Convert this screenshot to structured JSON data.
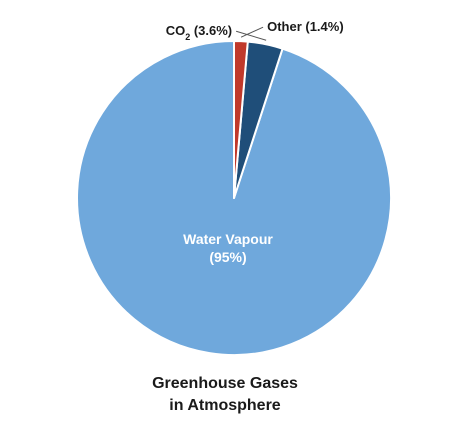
{
  "chart_data": {
    "type": "pie",
    "title_lines": [
      "Greenhouse Gases",
      "in Atmosphere"
    ],
    "start_angle_deg": 0,
    "direction": "counterclockwise",
    "slices": [
      {
        "name": "Water Vapour",
        "value": 95,
        "color": "#6fa8dc",
        "label_style": "inside",
        "label_lines": [
          "Water Vapour",
          "(95%)"
        ]
      },
      {
        "name": "CO2",
        "value": 3.6,
        "color": "#1f4e79",
        "label_style": "callout-left",
        "label_main": "CO",
        "label_sub": "2",
        "label_suffix": " (3.6%)"
      },
      {
        "name": "Other",
        "value": 1.4,
        "color": "#c0392b",
        "label_style": "callout-right",
        "label_main": "Other (1.4%)"
      }
    ]
  }
}
